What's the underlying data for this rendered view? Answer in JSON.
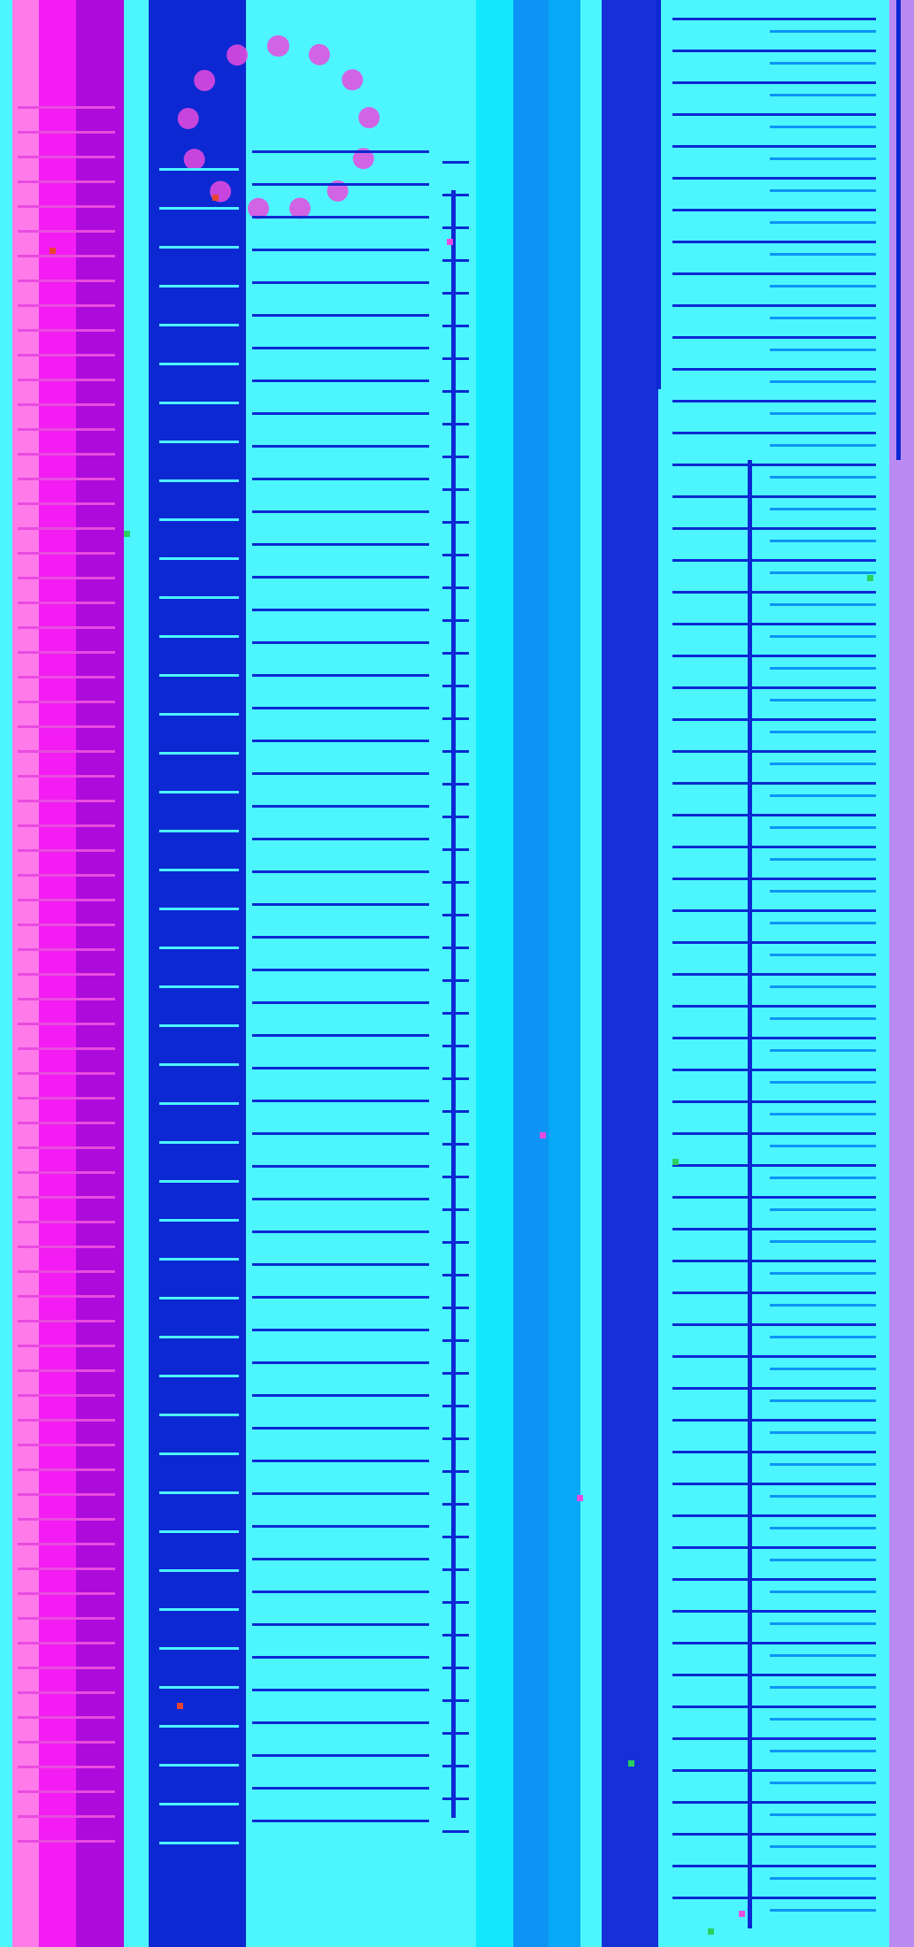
{
  "colors": {
    "background": "#4DF6FF",
    "pink_light": "#FF7BE9",
    "pink": "#E94BE0",
    "magenta": "#F31CF2",
    "purple": "#C80CE7",
    "violet": "#AC0BDB",
    "royal_blue": "#1530D8",
    "deep_blue": "#0C28D2",
    "sky_blue": "#0C94F5",
    "azure": "#07A8F5",
    "cyan_bright": "#11E8FF",
    "light_cyan": "#4DF6FF",
    "lavender": "#B98BF2",
    "green_accent": "#2AD160",
    "red_accent": "#E8432E"
  },
  "bands": [
    {
      "id": "b1",
      "color": "light_cyan"
    },
    {
      "id": "b2",
      "color": "pink_light"
    },
    {
      "id": "b3",
      "color": "magenta"
    },
    {
      "id": "b4",
      "color": "violet"
    },
    {
      "id": "b5",
      "color": "light_cyan"
    },
    {
      "id": "b6",
      "color": "deep_blue"
    },
    {
      "id": "b7",
      "color": "light_cyan"
    },
    {
      "id": "b8",
      "color": "cyan_bright"
    },
    {
      "id": "b9",
      "color": "sky_blue"
    },
    {
      "id": "b10",
      "color": "azure"
    },
    {
      "id": "b11",
      "color": "light_cyan"
    },
    {
      "id": "b12",
      "color": "royal_blue"
    },
    {
      "id": "b13",
      "color": "light_cyan"
    },
    {
      "id": "b14",
      "color": "lavender"
    }
  ],
  "icons": [
    "ring-glyph",
    "dot-marker"
  ]
}
